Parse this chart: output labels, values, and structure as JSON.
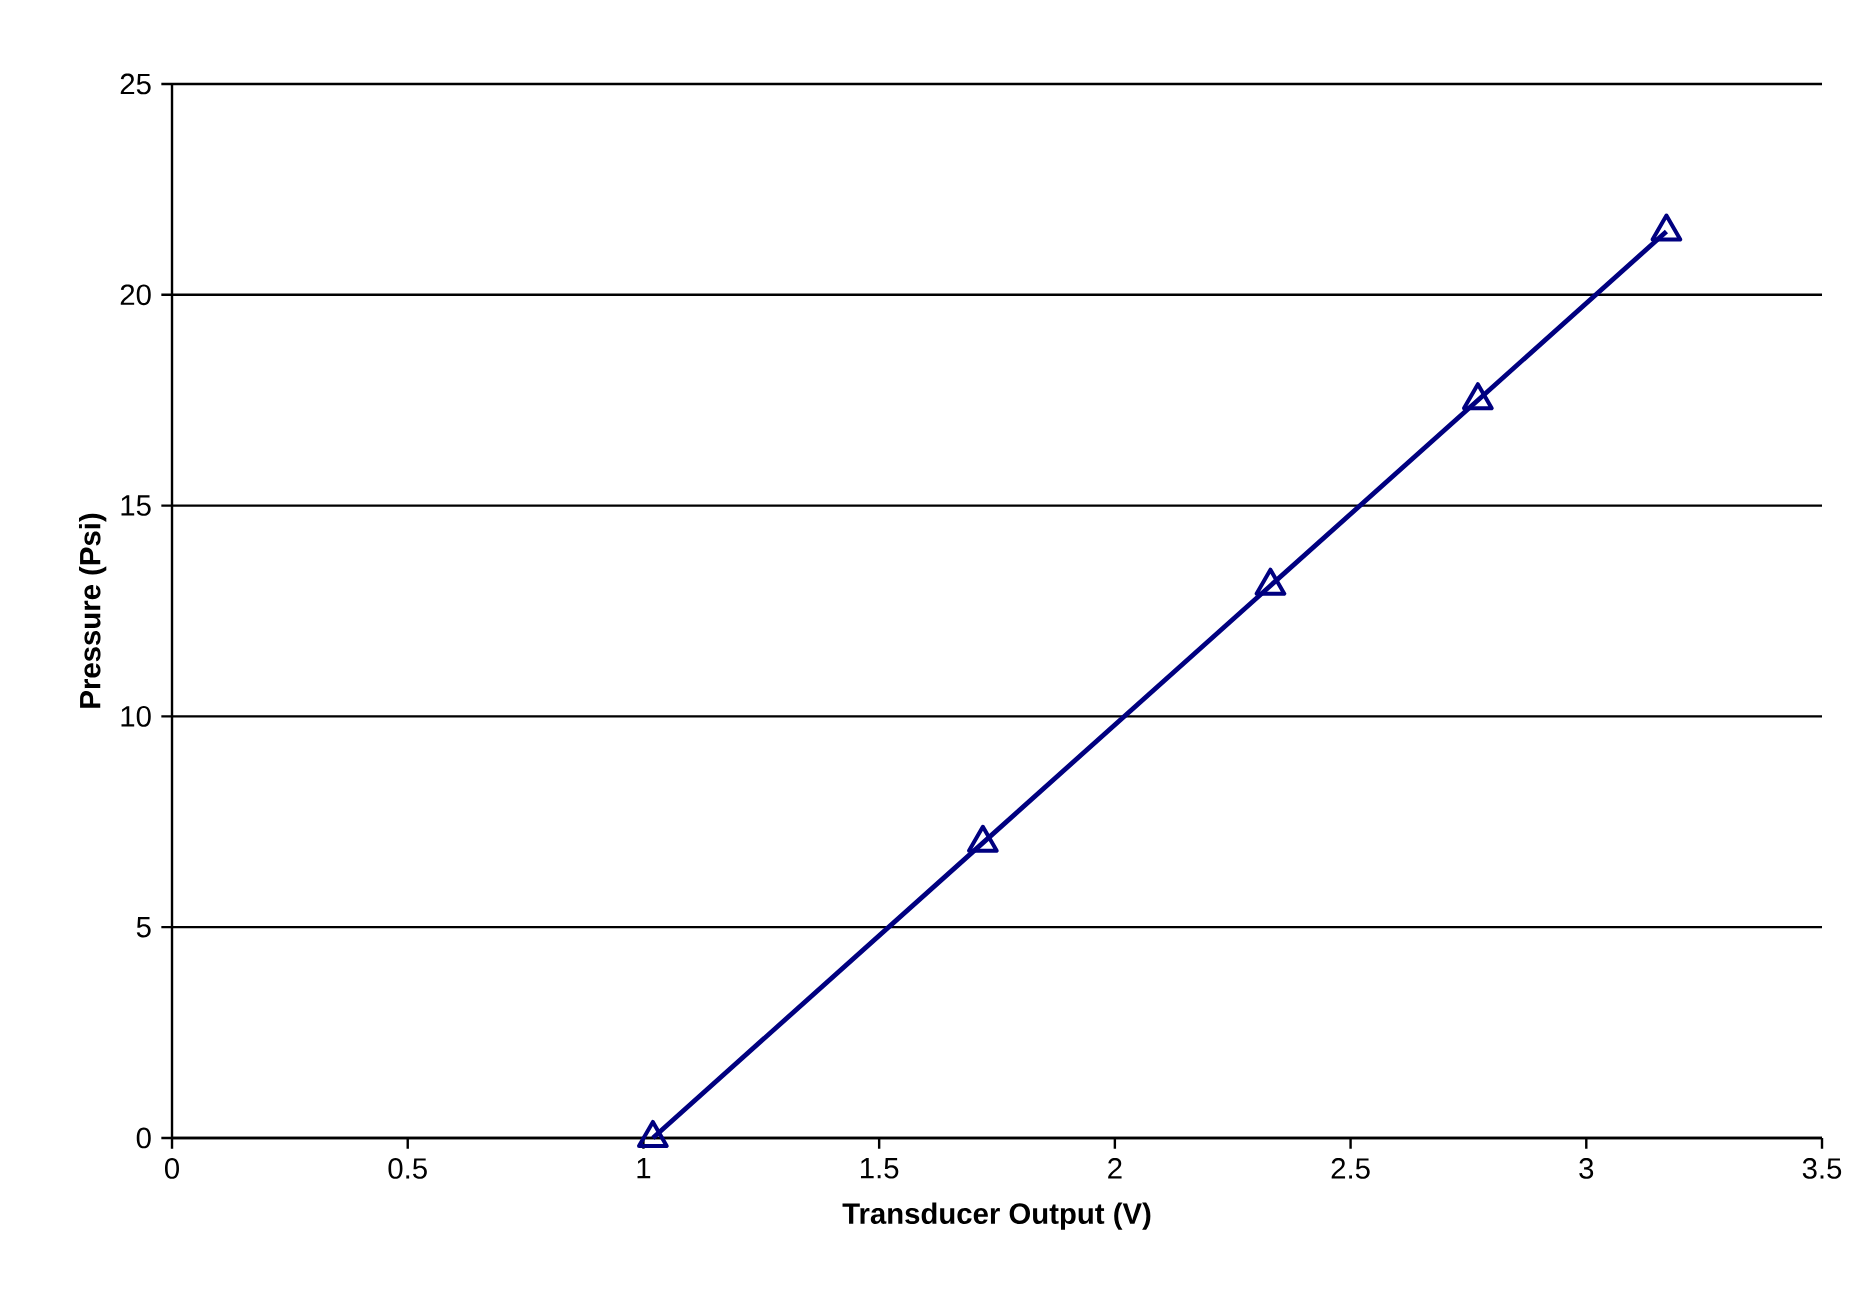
{
  "chart_data": {
    "type": "line",
    "xlabel": "Transducer Output (V)",
    "ylabel": "Pressure (Psi)",
    "x": [
      1.02,
      1.72,
      2.33,
      2.77,
      3.17
    ],
    "series": [
      {
        "color": "#000080",
        "values": [
          0,
          7.0,
          13.1,
          17.5,
          21.5
        ]
      }
    ],
    "xlim": [
      0,
      3.5
    ],
    "ylim": [
      0,
      25
    ],
    "xticks": [
      0,
      0.5,
      1,
      1.5,
      2,
      2.5,
      3,
      3.5
    ],
    "yticks": [
      0,
      5,
      10,
      15,
      20,
      25
    ],
    "grid": "y",
    "marker": "triangle",
    "line_style": "solid"
  }
}
